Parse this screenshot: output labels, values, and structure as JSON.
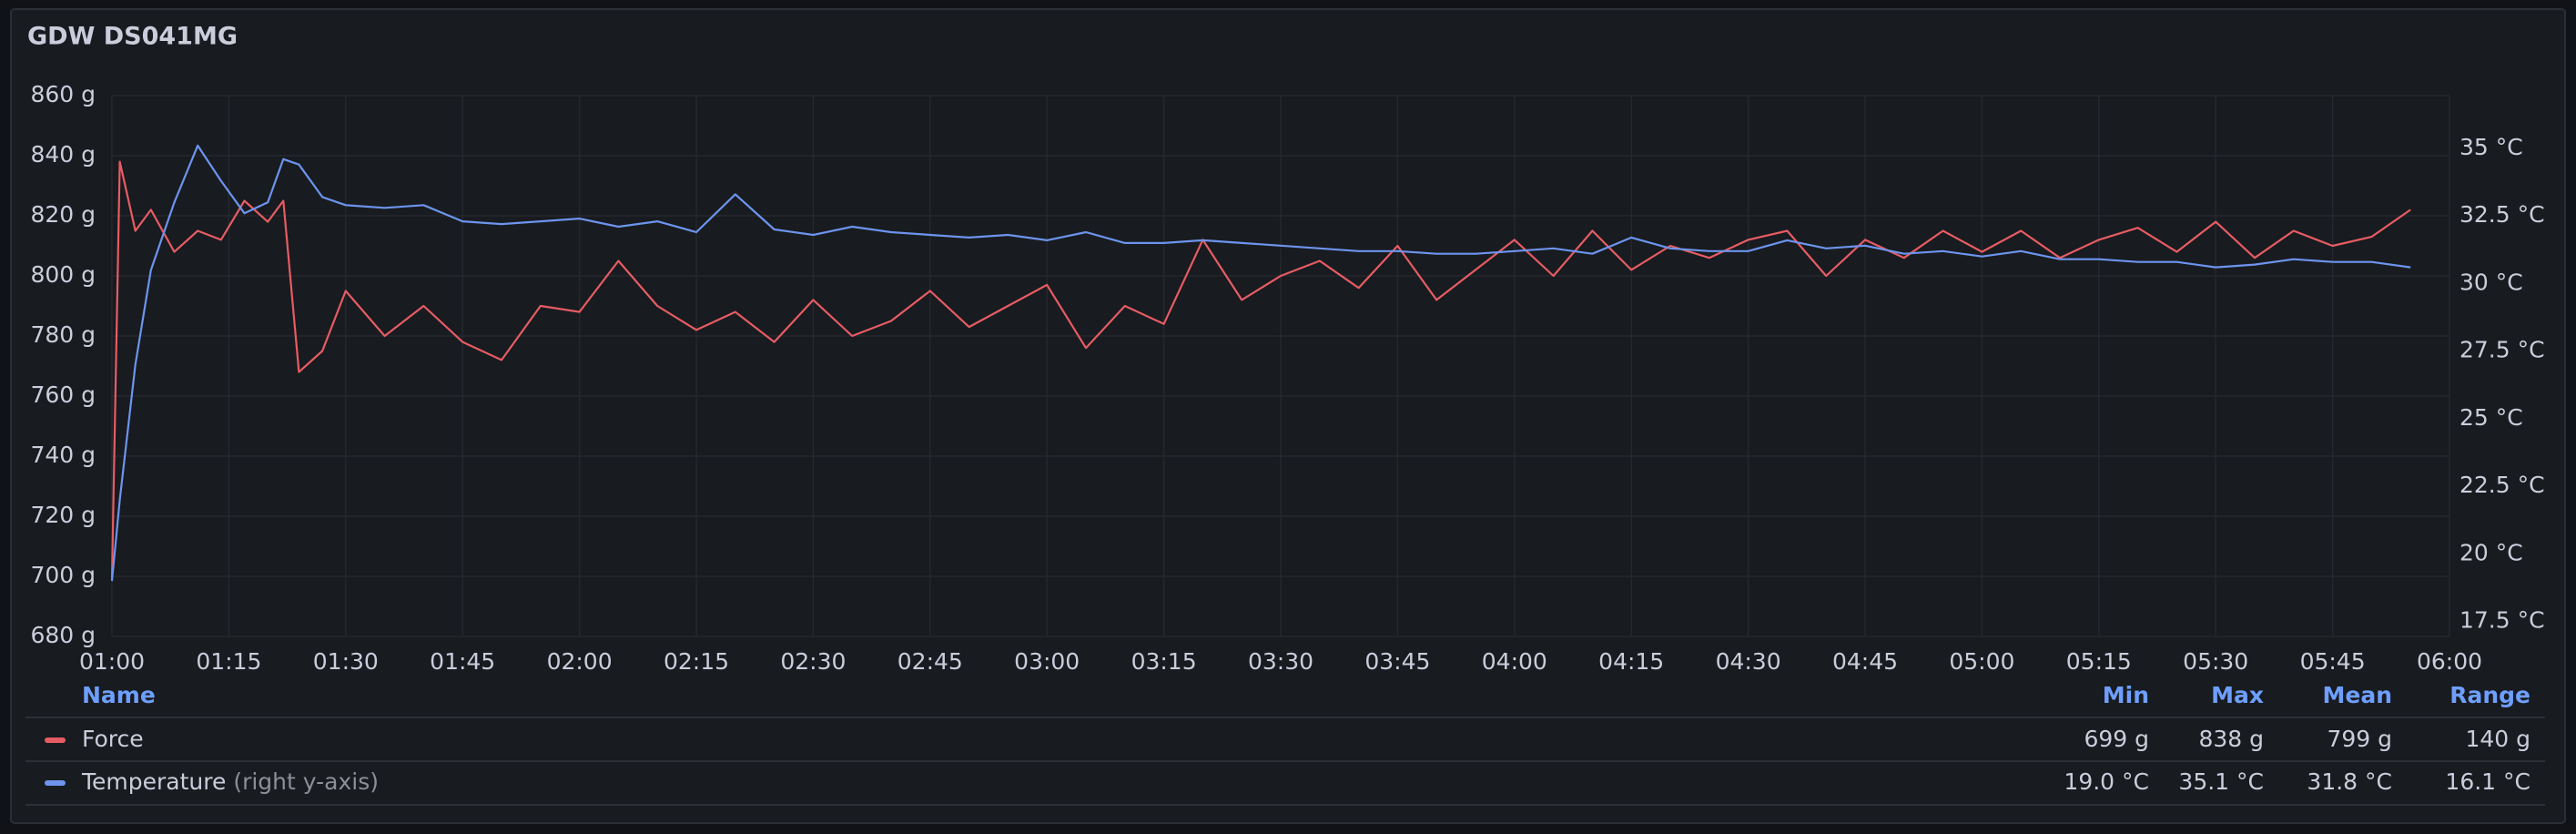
{
  "chart_data": {
    "type": "line",
    "title": "GDW DS041MG",
    "x": [
      "01:00",
      "01:01",
      "01:03",
      "01:05",
      "01:08",
      "01:11",
      "01:14",
      "01:17",
      "01:20",
      "01:22",
      "01:24",
      "01:27",
      "01:30",
      "01:35",
      "01:40",
      "01:45",
      "01:50",
      "01:55",
      "02:00",
      "02:05",
      "02:10",
      "02:15",
      "02:20",
      "02:25",
      "02:30",
      "02:35",
      "02:40",
      "02:45",
      "02:50",
      "02:55",
      "03:00",
      "03:05",
      "03:10",
      "03:15",
      "03:20",
      "03:25",
      "03:30",
      "03:35",
      "03:40",
      "03:45",
      "03:50",
      "03:55",
      "04:00",
      "04:05",
      "04:10",
      "04:15",
      "04:20",
      "04:25",
      "04:30",
      "04:35",
      "04:40",
      "04:45",
      "04:50",
      "04:55",
      "05:00",
      "05:05",
      "05:10",
      "05:15",
      "05:20",
      "05:25",
      "05:30",
      "05:35",
      "05:40",
      "05:45",
      "05:50",
      "05:55"
    ],
    "xlim": [
      "01:00",
      "06:00"
    ],
    "xticks": [
      "01:00",
      "01:15",
      "01:30",
      "01:45",
      "02:00",
      "02:15",
      "02:30",
      "02:45",
      "03:00",
      "03:15",
      "03:30",
      "03:45",
      "04:00",
      "04:15",
      "04:30",
      "04:45",
      "05:00",
      "05:15",
      "05:30",
      "05:45",
      "06:00"
    ],
    "ylim": [
      680,
      860
    ],
    "yticks": [
      {
        "value": 680,
        "label": "680 g"
      },
      {
        "value": 700,
        "label": "700 g"
      },
      {
        "value": 720,
        "label": "720 g"
      },
      {
        "value": 740,
        "label": "740 g"
      },
      {
        "value": 760,
        "label": "760 g"
      },
      {
        "value": 780,
        "label": "780 g"
      },
      {
        "value": 800,
        "label": "800 g"
      },
      {
        "value": 820,
        "label": "820 g"
      },
      {
        "value": 840,
        "label": "840 g"
      },
      {
        "value": 860,
        "label": "860 g"
      }
    ],
    "y2lim": [
      16.95,
      36.95
    ],
    "y2ticks": [
      {
        "value": 17.5,
        "label": "17.5 °C"
      },
      {
        "value": 20,
        "label": "20 °C"
      },
      {
        "value": 22.5,
        "label": "22.5 °C"
      },
      {
        "value": 25,
        "label": "25 °C"
      },
      {
        "value": 27.5,
        "label": "27.5 °C"
      },
      {
        "value": 30,
        "label": "30 °C"
      },
      {
        "value": 32.5,
        "label": "32.5 °C"
      },
      {
        "value": 35,
        "label": "35 °C"
      }
    ],
    "grid": true,
    "legend_header": "Name",
    "stat_names": [
      "Min",
      "Max",
      "Mean",
      "Range"
    ],
    "series": [
      {
        "name": "Force",
        "color": "#e65c64",
        "values": [
          699,
          838,
          815,
          822,
          808,
          815,
          812,
          825,
          818,
          825,
          768,
          775,
          795,
          780,
          790,
          778,
          772,
          790,
          788,
          805,
          790,
          782,
          788,
          778,
          792,
          780,
          785,
          795,
          783,
          790,
          797,
          776,
          790,
          784,
          812,
          792,
          800,
          805,
          796,
          810,
          792,
          802,
          812,
          800,
          815,
          802,
          810,
          806,
          812,
          815,
          800,
          812,
          806,
          815,
          808,
          815,
          806,
          812,
          816,
          808,
          818,
          806,
          815,
          810,
          813,
          822
        ],
        "stats": [
          699,
          838,
          799,
          140
        ],
        "stat_labels": [
          "699 g",
          "838 g",
          "799 g",
          "140 g"
        ]
      },
      {
        "name": "Temperature",
        "axis": "y2",
        "axis_note": "(right y-axis)",
        "color": "#6d94ee",
        "values": [
          19.0,
          22.0,
          27.0,
          30.5,
          33.0,
          35.1,
          33.8,
          32.6,
          33.0,
          34.6,
          34.4,
          33.2,
          32.9,
          32.8,
          32.9,
          32.3,
          32.2,
          32.3,
          32.4,
          32.1,
          32.3,
          31.9,
          33.3,
          32.0,
          31.8,
          32.1,
          31.9,
          31.8,
          31.7,
          31.8,
          31.6,
          31.9,
          31.5,
          31.5,
          31.6,
          31.5,
          31.4,
          31.3,
          31.2,
          31.2,
          31.1,
          31.1,
          31.2,
          31.3,
          31.1,
          31.7,
          31.3,
          31.2,
          31.2,
          31.6,
          31.3,
          31.4,
          31.1,
          31.2,
          31.0,
          31.2,
          30.9,
          30.9,
          30.8,
          30.8,
          30.6,
          30.7,
          30.9,
          30.8,
          30.8,
          30.6
        ],
        "stats": [
          19.0,
          35.1,
          31.8,
          16.1
        ],
        "stat_labels": [
          "19.0 °C",
          "35.1 °C",
          "31.8 °C",
          "16.1 °C"
        ]
      }
    ]
  }
}
